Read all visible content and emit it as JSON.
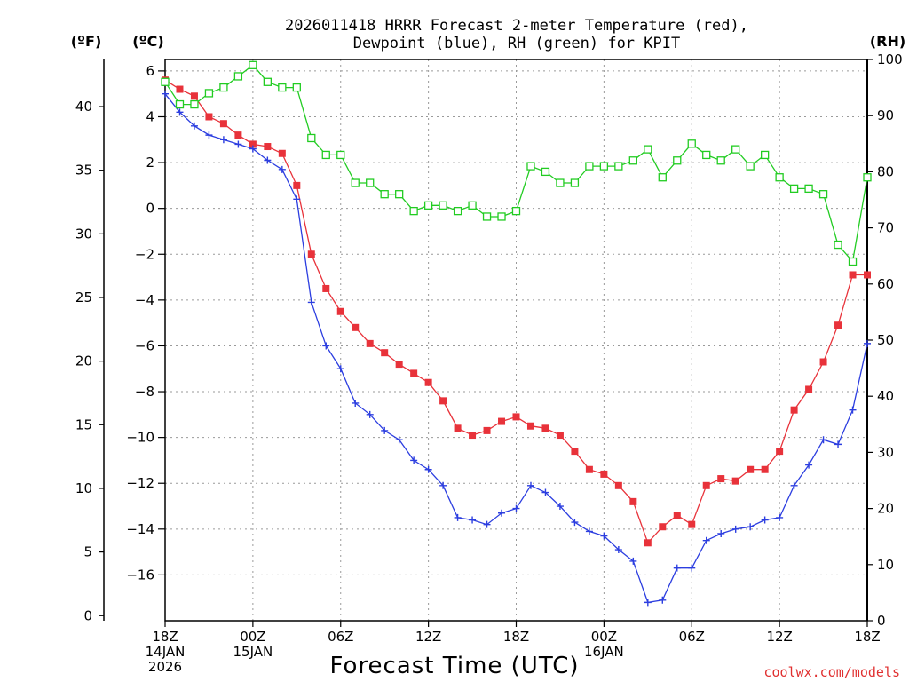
{
  "chart_data": {
    "type": "line",
    "title_line1": "2026011418 HRRR Forecast 2-meter Temperature (red),",
    "title_line2": "Dewpoint (blue), RH (green) for KPIT",
    "xlabel": "Forecast Time (UTC)",
    "credit": "coolwx.com/models",
    "left_outer_unit": "(ºF)",
    "left_inner_unit": "(ºC)",
    "right_unit": "(RH)",
    "celsius_axis": {
      "ylim": [
        -18,
        6.5
      ],
      "ticks": [
        6,
        4,
        2,
        0,
        -2,
        -4,
        -6,
        -8,
        -10,
        -12,
        -14,
        -16
      ],
      "tick_labels": [
        "6",
        "4",
        "2",
        "0",
        "−2",
        "−4",
        "−6",
        "−8",
        "−10",
        "−12",
        "−14",
        "−16"
      ]
    },
    "fahrenheit_axis": {
      "ticks": [
        40,
        35,
        30,
        25,
        20,
        15,
        10,
        5,
        0
      ],
      "tick_labels": [
        "40",
        "35",
        "30",
        "25",
        "20",
        "15",
        "10",
        "5",
        "0"
      ]
    },
    "rh_axis": {
      "ylim": [
        0,
        100
      ],
      "ticks": [
        100,
        90,
        80,
        70,
        60,
        50,
        40,
        30,
        20,
        10,
        0
      ],
      "tick_labels": [
        "100",
        "90",
        "80",
        "70",
        "60",
        "50",
        "40",
        "30",
        "20",
        "10",
        "0"
      ]
    },
    "x_range_hours": [
      0,
      48
    ],
    "x_ticks": [
      {
        "hour": 0,
        "lines": [
          "18Z",
          "14JAN",
          "2026"
        ]
      },
      {
        "hour": 6,
        "lines": [
          "00Z",
          "15JAN"
        ]
      },
      {
        "hour": 12,
        "lines": [
          "06Z"
        ]
      },
      {
        "hour": 18,
        "lines": [
          "12Z"
        ]
      },
      {
        "hour": 24,
        "lines": [
          "18Z"
        ]
      },
      {
        "hour": 30,
        "lines": [
          "00Z",
          "16JAN"
        ]
      },
      {
        "hour": 36,
        "lines": [
          "06Z"
        ]
      },
      {
        "hour": 42,
        "lines": [
          "12Z"
        ]
      },
      {
        "hour": 48,
        "lines": [
          "18Z"
        ]
      }
    ],
    "series": [
      {
        "name": "Temperature (°C)",
        "color": "#e8323a",
        "marker": "filled-square",
        "axis": "celsius",
        "values": [
          5.6,
          5.2,
          4.9,
          4.0,
          3.7,
          3.2,
          2.8,
          2.7,
          2.4,
          1.0,
          -2.0,
          -3.5,
          -4.5,
          -5.2,
          -5.9,
          -6.3,
          -6.8,
          -7.2,
          -7.6,
          -8.4,
          -9.6,
          -9.9,
          -9.7,
          -9.3,
          -9.1,
          -9.5,
          -9.6,
          -9.9,
          -10.6,
          -11.4,
          -11.6,
          -12.1,
          -12.8,
          -14.6,
          -13.9,
          -13.4,
          -13.8,
          -12.1,
          -11.8,
          -11.9,
          -11.4,
          -11.4,
          -10.6,
          -8.8,
          -7.9,
          -6.7,
          -5.1,
          -2.9,
          -2.9
        ]
      },
      {
        "name": "Dewpoint (°C)",
        "color": "#2c3ee0",
        "marker": "plus",
        "axis": "celsius",
        "values": [
          5.0,
          4.2,
          3.6,
          3.2,
          3.0,
          2.8,
          2.6,
          2.1,
          1.7,
          0.4,
          -4.1,
          -6.0,
          -7.0,
          -8.5,
          -9.0,
          -9.7,
          -10.1,
          -11.0,
          -11.4,
          -12.1,
          -13.5,
          -13.6,
          -13.8,
          -13.3,
          -13.1,
          -12.1,
          -12.4,
          -13.0,
          -13.7,
          -14.1,
          -14.3,
          -14.9,
          -15.4,
          -17.2,
          -17.1,
          -15.7,
          -15.7,
          -14.5,
          -14.2,
          -14.0,
          -13.9,
          -13.6,
          -13.5,
          -12.1,
          -11.2,
          -10.1,
          -10.3,
          -8.8,
          -5.9
        ]
      },
      {
        "name": "RH (%)",
        "color": "#22cc22",
        "marker": "open-square",
        "axis": "rh",
        "values": [
          96,
          92,
          92,
          94,
          95,
          97,
          99,
          96,
          95,
          95,
          86,
          83,
          83,
          78,
          78,
          76,
          76,
          73,
          74,
          74,
          73,
          74,
          72,
          72,
          73,
          81,
          80,
          78,
          78,
          81,
          81,
          81,
          82,
          84,
          79,
          82,
          85,
          83,
          82,
          84,
          81,
          83,
          79,
          77,
          77,
          76,
          67,
          64,
          79
        ]
      }
    ]
  }
}
